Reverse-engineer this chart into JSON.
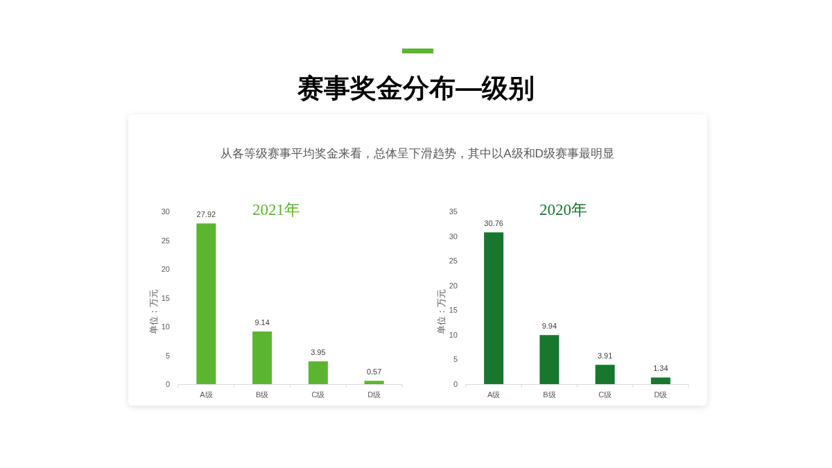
{
  "chart_data": [
    {
      "type": "other",
      "title": "赛事奖金分布—级别",
      "subtitle": "从各等级赛事平均奖金来看，总体呈下滑趋势，其中以A级和D级赛事最明显"
    },
    {
      "type": "bar",
      "title": "2021年",
      "ylabel": "单位：万元",
      "categories": [
        "A级",
        "B级",
        "C级",
        "D级"
      ],
      "values": [
        27.92,
        9.14,
        3.95,
        0.57
      ],
      "color": "#5cb531",
      "ylim": [
        0,
        30
      ],
      "yticks": [
        0,
        5,
        10,
        15,
        20,
        25,
        30
      ],
      "data_labels": true
    },
    {
      "type": "bar",
      "title": "2020年",
      "ylabel": "单位：万元",
      "categories": [
        "A级",
        "B级",
        "C级",
        "D级"
      ],
      "values": [
        30.76,
        9.94,
        3.91,
        1.34
      ],
      "color": "#17772f",
      "ylim": [
        0,
        35
      ],
      "yticks": [
        0,
        5,
        10,
        15,
        20,
        25,
        30,
        35
      ],
      "data_labels": true
    }
  ]
}
